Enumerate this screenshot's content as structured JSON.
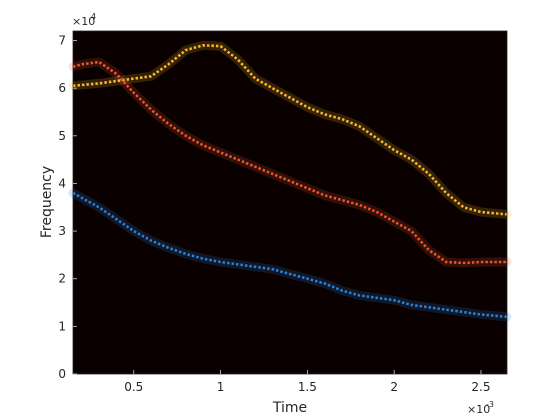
{
  "chart_data": {
    "type": "line",
    "title": "",
    "xlabel": "Time",
    "ylabel": "Frequency",
    "x_multiplier": "×10",
    "x_multiplier_exp": "-3",
    "y_multiplier": "×10",
    "y_multiplier_exp": "4",
    "xlim": [
      0.00015,
      0.00265
    ],
    "ylim": [
      0,
      72000
    ],
    "x_ticks": [
      {
        "value": 0.0005,
        "label": "0.5"
      },
      {
        "value": 0.001,
        "label": "1"
      },
      {
        "value": 0.0015,
        "label": "1.5"
      },
      {
        "value": 0.002,
        "label": "2"
      },
      {
        "value": 0.0025,
        "label": "2.5"
      }
    ],
    "y_ticks": [
      {
        "value": 0,
        "label": "0"
      },
      {
        "value": 10000,
        "label": "1"
      },
      {
        "value": 20000,
        "label": "2"
      },
      {
        "value": 30000,
        "label": "3"
      },
      {
        "value": 40000,
        "label": "4"
      },
      {
        "value": 50000,
        "label": "5"
      },
      {
        "value": 60000,
        "label": "6"
      },
      {
        "value": 70000,
        "label": "7"
      }
    ],
    "background": "#0a0000",
    "series": [
      {
        "color": "#f5b62e",
        "x": [
          0.00015,
          0.0003,
          0.0004,
          0.0005,
          0.0006,
          0.0007,
          0.0008,
          0.0009,
          0.001,
          0.0011,
          0.0012,
          0.0013,
          0.0014,
          0.0015,
          0.0016,
          0.0017,
          0.0018,
          0.0019,
          0.002,
          0.0021,
          0.0022,
          0.0023,
          0.0024,
          0.0025,
          0.00265
        ],
        "y": [
          60500,
          61000,
          61500,
          62000,
          62500,
          65000,
          68000,
          69000,
          68800,
          66000,
          62000,
          60000,
          58000,
          56000,
          54500,
          53500,
          52000,
          49500,
          47000,
          45000,
          42000,
          38000,
          35000,
          34000,
          33500
        ]
      },
      {
        "color": "#e8552a",
        "x": [
          0.00015,
          0.0002,
          0.0003,
          0.0004,
          0.0005,
          0.0006,
          0.0007,
          0.0008,
          0.0009,
          0.001,
          0.0011,
          0.0012,
          0.0013,
          0.0014,
          0.0015,
          0.0016,
          0.0017,
          0.0018,
          0.0019,
          0.002,
          0.0021,
          0.0022,
          0.0023,
          0.0024,
          0.0025,
          0.00265
        ],
        "y": [
          64500,
          65000,
          65500,
          63000,
          59000,
          55500,
          52500,
          50000,
          48000,
          46500,
          45000,
          43500,
          42000,
          40500,
          39000,
          37500,
          36500,
          35500,
          34000,
          32000,
          30000,
          26000,
          23500,
          23300,
          23500,
          23500
        ]
      },
      {
        "color": "#2a7fd4",
        "x": [
          0.00015,
          0.0003,
          0.0004,
          0.0005,
          0.0006,
          0.0007,
          0.0008,
          0.0009,
          0.001,
          0.0011,
          0.0012,
          0.0013,
          0.0014,
          0.0015,
          0.0016,
          0.0017,
          0.0018,
          0.0019,
          0.002,
          0.0021,
          0.0022,
          0.0023,
          0.0024,
          0.0025,
          0.00265
        ],
        "y": [
          38000,
          35000,
          32500,
          30000,
          28000,
          26500,
          25200,
          24200,
          23500,
          23000,
          22500,
          22000,
          21000,
          20000,
          19000,
          17500,
          16500,
          16000,
          15500,
          14500,
          14000,
          13500,
          13000,
          12500,
          12000
        ]
      }
    ]
  }
}
